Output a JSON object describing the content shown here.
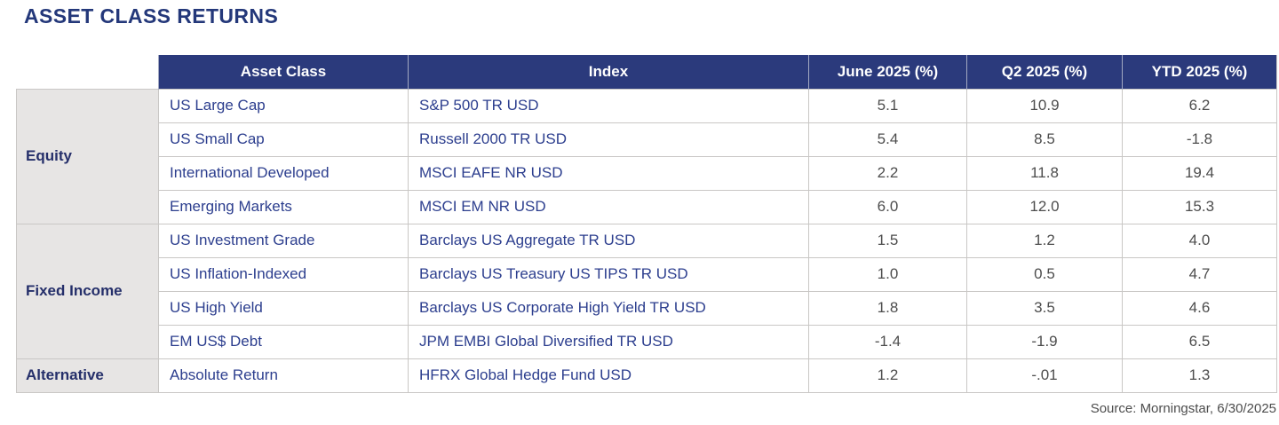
{
  "page": {
    "title": "ASSET CLASS RETURNS",
    "source_note": "Source: Morningstar, 6/30/2025"
  },
  "colors": {
    "header_bg": "#2b3a7c",
    "header_text": "#ffffff",
    "title_text": "#24387a",
    "cell_text_navy": "#2c3e8e",
    "value_text_gray": "#4d4d4d",
    "group_bg": "#e7e5e4",
    "group_text": "#252f6a",
    "border": "#c9c7c5"
  },
  "chart_data": {
    "type": "table",
    "title": "ASSET CLASS RETURNS",
    "column_headers": [
      "Asset Class",
      "Index",
      "June 2025 (%)",
      "Q2 2025 (%)",
      "YTD 2025 (%)"
    ],
    "row_groups": [
      {
        "group": "Equity",
        "rows": [
          [
            "US Large Cap",
            "S&P 500 TR USD",
            "5.1",
            "10.9",
            "6.2"
          ],
          [
            "US Small Cap",
            "Russell 2000 TR USD",
            "5.4",
            "8.5",
            "-1.8"
          ],
          [
            "International Developed",
            "MSCI EAFE NR USD",
            "2.2",
            "11.8",
            "19.4"
          ],
          [
            "Emerging Markets",
            "MSCI EM NR USD",
            "6.0",
            "12.0",
            "15.3"
          ]
        ]
      },
      {
        "group": "Fixed Income",
        "rows": [
          [
            "US Investment Grade",
            "Barclays US Aggregate TR USD",
            "1.5",
            "1.2",
            "4.0"
          ],
          [
            "US Inflation-Indexed",
            "Barclays US Treasury US TIPS TR USD",
            "1.0",
            "0.5",
            "4.7"
          ],
          [
            "US High Yield",
            "Barclays US Corporate High Yield TR USD",
            "1.8",
            "3.5",
            "4.6"
          ],
          [
            "EM US$ Debt",
            "JPM EMBI Global Diversified TR USD",
            "-1.4",
            "-1.9",
            "6.5"
          ]
        ]
      },
      {
        "group": "Alternative",
        "rows": [
          [
            "Absolute Return",
            "HFRX Global Hedge Fund USD",
            "1.2",
            "-.01",
            "1.3"
          ]
        ]
      }
    ],
    "source": "Source: Morningstar, 6/30/2025"
  }
}
